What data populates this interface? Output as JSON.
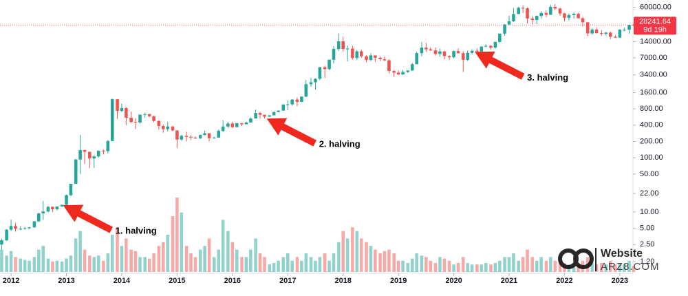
{
  "chart_data": {
    "type": "candlestick",
    "log_scale": true,
    "grid": false,
    "up_color": "#26a69a",
    "down_color": "#ef5350",
    "xlim": [
      2011.8,
      2023.3
    ],
    "xticks": [
      2012,
      2013,
      2014,
      2015,
      2016,
      2017,
      2018,
      2019,
      2020,
      2021,
      2022,
      2023
    ],
    "ylim": [
      0.78,
      82000
    ],
    "yticks": [
      {
        "value": 1.2,
        "label": "1.20"
      },
      {
        "value": 2.5,
        "label": "2.50"
      },
      {
        "value": 5,
        "label": "5.00"
      },
      {
        "value": 10,
        "label": "10.00"
      },
      {
        "value": 22,
        "label": "22.00"
      },
      {
        "value": 50,
        "label": "50.00"
      },
      {
        "value": 100,
        "label": "100.00"
      },
      {
        "value": 200,
        "label": "200.00"
      },
      {
        "value": 400,
        "label": "400.00"
      },
      {
        "value": 800,
        "label": "800.00"
      },
      {
        "value": 1600,
        "label": "1600.00"
      },
      {
        "value": 3400,
        "label": "3400.00"
      },
      {
        "value": 7000,
        "label": "7000.00"
      },
      {
        "value": 14000,
        "label": "14000.00"
      },
      {
        "value": 60000,
        "label": "60000.00"
      }
    ],
    "countdown": "9d 19h",
    "annotations": [
      {
        "text": "1. halving",
        "x": 2012.94,
        "y": 13.3
      },
      {
        "text": "2. halving",
        "x": 2016.62,
        "y": 530
      },
      {
        "text": "3. halving",
        "x": 2020.38,
        "y": 9040
      }
    ],
    "watermark": {
      "line1": "Website",
      "line2": "ARZ8.COM"
    },
    "x": [
      2011.83,
      2011.92,
      2012.0,
      2012.08,
      2012.17,
      2012.25,
      2012.33,
      2012.42,
      2012.5,
      2012.58,
      2012.67,
      2012.75,
      2012.83,
      2012.92,
      2013.0,
      2013.08,
      2013.17,
      2013.25,
      2013.33,
      2013.42,
      2013.5,
      2013.58,
      2013.67,
      2013.75,
      2013.83,
      2013.92,
      2014.0,
      2014.08,
      2014.17,
      2014.25,
      2014.33,
      2014.42,
      2014.5,
      2014.58,
      2014.67,
      2014.75,
      2014.83,
      2014.92,
      2015.0,
      2015.08,
      2015.17,
      2015.25,
      2015.33,
      2015.42,
      2015.5,
      2015.58,
      2015.67,
      2015.75,
      2015.83,
      2015.92,
      2016.0,
      2016.08,
      2016.17,
      2016.25,
      2016.33,
      2016.42,
      2016.5,
      2016.58,
      2016.67,
      2016.75,
      2016.83,
      2016.92,
      2017.0,
      2017.08,
      2017.17,
      2017.25,
      2017.33,
      2017.42,
      2017.5,
      2017.58,
      2017.67,
      2017.75,
      2017.83,
      2017.92,
      2018.0,
      2018.08,
      2018.17,
      2018.25,
      2018.33,
      2018.42,
      2018.5,
      2018.58,
      2018.67,
      2018.75,
      2018.83,
      2018.92,
      2019.0,
      2019.08,
      2019.17,
      2019.25,
      2019.33,
      2019.42,
      2019.5,
      2019.58,
      2019.67,
      2019.75,
      2019.83,
      2019.92,
      2020.0,
      2020.08,
      2020.17,
      2020.25,
      2020.33,
      2020.42,
      2020.5,
      2020.58,
      2020.67,
      2020.75,
      2020.83,
      2020.92,
      2021.0,
      2021.08,
      2021.17,
      2021.25,
      2021.33,
      2021.42,
      2021.5,
      2021.58,
      2021.67,
      2021.75,
      2021.83,
      2021.92,
      2022.0,
      2022.08,
      2022.17,
      2022.25,
      2022.33,
      2022.42,
      2022.5,
      2022.58,
      2022.67,
      2022.75,
      2022.83,
      2022.92,
      2023.0,
      2023.08,
      2023.17,
      2023.25
    ],
    "open": [
      2.5,
      3.0,
      4.7,
      5.5,
      4.9,
      4.9,
      5.0,
      5.2,
      6.7,
      9.4,
      10.2,
      12.4,
      11.2,
      12.6,
      13.5,
      20.4,
      33,
      93,
      139,
      129,
      97,
      106,
      135,
      133,
      204,
      1205,
      732,
      829,
      550,
      458,
      448,
      627,
      640,
      586,
      478,
      386,
      338,
      378,
      320,
      217,
      254,
      244,
      236,
      230,
      263,
      284,
      230,
      236,
      314,
      377,
      430,
      368,
      437,
      416,
      448,
      531,
      673,
      624,
      575,
      609,
      698,
      742,
      963,
      970,
      1190,
      1080,
      1348,
      2286,
      2480,
      2875,
      4703,
      4338,
      6468,
      10233,
      14156,
      10221,
      10397,
      6973,
      9240,
      7494,
      6404,
      7780,
      7037,
      6625,
      6318,
      4017,
      3742,
      3457,
      3854,
      4105,
      5350,
      8574,
      10817,
      10085,
      9630,
      8293,
      9199,
      7569,
      7193,
      9350,
      8543,
      6438,
      8658,
      9461,
      9137,
      11323,
      11680,
      10784,
      13781,
      19625,
      28949,
      33114,
      45137,
      58918,
      57750,
      37332,
      35040,
      41626,
      47166,
      43790,
      61318,
      57005,
      46306,
      38483,
      43193,
      45538,
      37714,
      31792,
      19784,
      23336,
      20050,
      19431,
      20495,
      17168,
      16547,
      23139,
      23147,
      28478
    ],
    "high": [
      3.2,
      4.8,
      7.2,
      6.3,
      5.4,
      5.3,
      5.2,
      6.8,
      9.6,
      16,
      12.9,
      12.6,
      12.6,
      13.7,
      21,
      33,
      95,
      266,
      140,
      129,
      111,
      135,
      143,
      213,
      1240,
      1150,
      1000,
      860,
      720,
      540,
      630,
      680,
      650,
      600,
      492,
      412,
      460,
      385,
      322,
      264,
      300,
      262,
      249,
      269,
      317,
      286,
      244,
      335,
      495,
      465,
      463,
      438,
      424,
      466,
      553,
      775,
      703,
      623,
      611,
      716,
      755,
      971,
      1150,
      1210,
      1290,
      1350,
      2740,
      2980,
      2930,
      4780,
      5020,
      6470,
      11500,
      19800,
      17200,
      11800,
      11700,
      9760,
      9990,
      7790,
      8500,
      7770,
      7430,
      7380,
      6600,
      4200,
      4100,
      4200,
      4150,
      5640,
      9100,
      13800,
      13100,
      11000,
      10900,
      10370,
      9520,
      7760,
      9580,
      10500,
      9200,
      9460,
      10080,
      10440,
      11450,
      12470,
      12060,
      14000,
      19800,
      29300,
      41900,
      58300,
      61800,
      64900,
      59600,
      41300,
      42300,
      50500,
      52900,
      67000,
      69000,
      59000,
      47900,
      45800,
      48200,
      47400,
      40000,
      31900,
      24600,
      25200,
      22800,
      21000,
      21500,
      18400,
      23900,
      25200,
      29200,
      30000
    ],
    "low": [
      2.0,
      2.9,
      4.4,
      4.3,
      4.6,
      4.7,
      4.8,
      5.1,
      6.5,
      7.1,
      9.8,
      9.9,
      10.6,
      12.5,
      13.3,
      19.5,
      33,
      50,
      77,
      64,
      65,
      100,
      115,
      120,
      202,
      522,
      700,
      400,
      442,
      340,
      429,
      545,
      560,
      450,
      330,
      290,
      310,
      308,
      152,
      207,
      200,
      212,
      223,
      220,
      260,
      200,
      225,
      235,
      300,
      353,
      350,
      365,
      386,
      414,
      445,
      530,
      524,
      531,
      573,
      606,
      694,
      742,
      752,
      915,
      890,
      1070,
      1320,
      2070,
      1830,
      2700,
      2980,
      4140,
      5520,
      9400,
      9100,
      6000,
      6500,
      6440,
      7040,
      5780,
      6100,
      5880,
      6100,
      6100,
      3600,
      3130,
      3380,
      3370,
      3700,
      4030,
      5330,
      7450,
      9100,
      9340,
      7710,
      7300,
      6560,
      6430,
      6850,
      8450,
      3850,
      6150,
      8120,
      8900,
      9000,
      11000,
      9880,
      10380,
      13200,
      18000,
      28200,
      32300,
      45000,
      47000,
      30000,
      28800,
      29300,
      37300,
      39600,
      43300,
      53300,
      42000,
      32900,
      34300,
      37200,
      37600,
      26700,
      17600,
      18800,
      19600,
      18100,
      18200,
      15500,
      16300,
      16500,
      21500,
      19600,
      27000
    ],
    "close": [
      3.0,
      4.7,
      5.5,
      4.9,
      4.9,
      5.0,
      5.2,
      6.7,
      9.4,
      10.2,
      12.4,
      11.2,
      12.6,
      13.5,
      20.4,
      33,
      93,
      139,
      129,
      97,
      106,
      135,
      133,
      204,
      1205,
      732,
      829,
      550,
      458,
      448,
      627,
      640,
      586,
      478,
      386,
      338,
      378,
      320,
      217,
      254,
      244,
      236,
      230,
      263,
      284,
      230,
      236,
      314,
      377,
      430,
      368,
      437,
      416,
      448,
      531,
      673,
      624,
      575,
      609,
      698,
      742,
      963,
      970,
      1190,
      1080,
      1348,
      2286,
      2480,
      2875,
      4703,
      4338,
      6468,
      10233,
      14156,
      10221,
      10397,
      6973,
      9240,
      7494,
      6404,
      7780,
      7037,
      6625,
      6318,
      4017,
      3742,
      3457,
      3854,
      4105,
      5350,
      8574,
      10817,
      10085,
      9630,
      8293,
      9199,
      7569,
      7193,
      9350,
      8543,
      6438,
      8658,
      9461,
      9137,
      11323,
      11680,
      10784,
      13781,
      19625,
      28949,
      33114,
      45137,
      58918,
      57750,
      37332,
      35040,
      41626,
      47166,
      43790,
      61318,
      57005,
      46306,
      38483,
      43193,
      45538,
      37714,
      31792,
      19784,
      23336,
      20050,
      19431,
      20495,
      17168,
      16547,
      23139,
      23147,
      28478,
      28241.64
    ],
    "volume": [
      30,
      22,
      28,
      20,
      18,
      16,
      15,
      20,
      30,
      35,
      18,
      14,
      15,
      14,
      18,
      22,
      45,
      55,
      30,
      22,
      20,
      22,
      15,
      25,
      50,
      60,
      35,
      45,
      30,
      28,
      20,
      20,
      18,
      25,
      35,
      40,
      50,
      75,
      100,
      80,
      35,
      25,
      20,
      30,
      35,
      45,
      20,
      30,
      70,
      55,
      40,
      30,
      20,
      20,
      30,
      45,
      25,
      20,
      10,
      12,
      15,
      20,
      25,
      15,
      20,
      15,
      25,
      20,
      15,
      20,
      25,
      15,
      25,
      40,
      55,
      45,
      60,
      55,
      45,
      40,
      35,
      30,
      25,
      28,
      30,
      25,
      15,
      15,
      12,
      18,
      25,
      22,
      20,
      15,
      12,
      20,
      18,
      15,
      10,
      12,
      20,
      12,
      10,
      10,
      10,
      12,
      10,
      12,
      15,
      20,
      20,
      25,
      15,
      20,
      30,
      20,
      15,
      20,
      15,
      20,
      15,
      15,
      12,
      10,
      8,
      10,
      15,
      20,
      12,
      10,
      12,
      10,
      15,
      10,
      12,
      10,
      15,
      8
    ]
  }
}
